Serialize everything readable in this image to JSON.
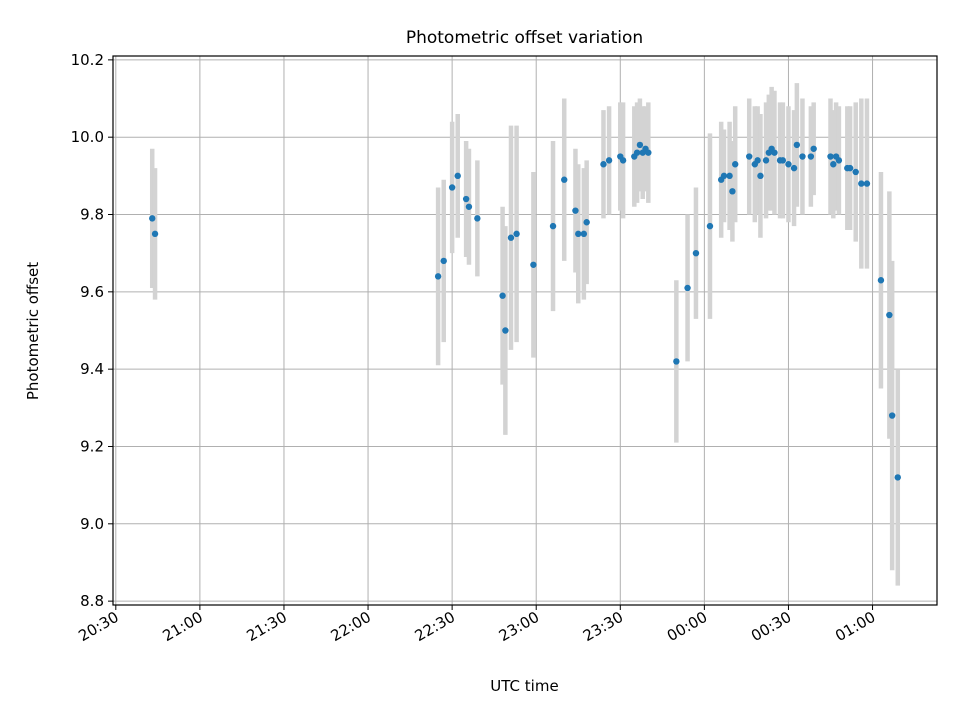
{
  "chart_data": {
    "type": "scatter",
    "title": "Photometric offset variation",
    "xlabel": "UTC time",
    "ylabel": "Photometric offset",
    "x_is_time": true,
    "xlim": [
      "20:29",
      "01:23"
    ],
    "ylim": [
      8.79,
      10.21
    ],
    "x_ticks": [
      "20:30",
      "21:00",
      "21:30",
      "22:00",
      "22:30",
      "23:00",
      "23:30",
      "00:00",
      "00:30",
      "01:00"
    ],
    "y_ticks": [
      "8.8",
      "9.0",
      "9.2",
      "9.4",
      "9.6",
      "9.8",
      "10.0",
      "10.2"
    ],
    "y_tick_values": [
      8.8,
      9.0,
      9.2,
      9.4,
      9.6,
      9.8,
      10.0,
      10.2
    ],
    "grid": true,
    "marker_color": "#1f77b4",
    "errorbar_color": "#d3d3d3",
    "points": [
      [
        "20:43",
        9.79,
        0.18
      ],
      [
        "20:44",
        9.75,
        0.17
      ],
      [
        "22:25",
        9.64,
        0.23
      ],
      [
        "22:27",
        9.68,
        0.21
      ],
      [
        "22:30",
        9.87,
        0.17
      ],
      [
        "22:32",
        9.9,
        0.16
      ],
      [
        "22:35",
        9.84,
        0.15
      ],
      [
        "22:36",
        9.82,
        0.15
      ],
      [
        "22:39",
        9.79,
        0.15
      ],
      [
        "22:48",
        9.59,
        0.23
      ],
      [
        "22:49",
        9.5,
        0.27
      ],
      [
        "22:51",
        9.74,
        0.29
      ],
      [
        "22:53",
        9.75,
        0.28
      ],
      [
        "22:59",
        9.67,
        0.24
      ],
      [
        "23:06",
        9.77,
        0.22
      ],
      [
        "23:10",
        9.89,
        0.21
      ],
      [
        "23:14",
        9.81,
        0.16
      ],
      [
        "23:15",
        9.75,
        0.18
      ],
      [
        "23:17",
        9.75,
        0.17
      ],
      [
        "23:18",
        9.78,
        0.16
      ],
      [
        "23:24",
        9.93,
        0.14
      ],
      [
        "23:26",
        9.94,
        0.14
      ],
      [
        "23:30",
        9.95,
        0.14
      ],
      [
        "23:31",
        9.94,
        0.15
      ],
      [
        "23:35",
        9.95,
        0.13
      ],
      [
        "23:36",
        9.96,
        0.13
      ],
      [
        "23:37",
        9.98,
        0.12
      ],
      [
        "23:38",
        9.96,
        0.12
      ],
      [
        "23:39",
        9.97,
        0.11
      ],
      [
        "23:40",
        9.96,
        0.13
      ],
      [
        "23:50",
        9.42,
        0.21
      ],
      [
        "23:54",
        9.61,
        0.19
      ],
      [
        "23:57",
        9.7,
        0.17
      ],
      [
        "00:02",
        9.77,
        0.24
      ],
      [
        "00:06",
        9.89,
        0.15
      ],
      [
        "00:07",
        9.9,
        0.12
      ],
      [
        "00:09",
        9.9,
        0.14
      ],
      [
        "00:10",
        9.86,
        0.13
      ],
      [
        "00:11",
        9.93,
        0.15
      ],
      [
        "00:16",
        9.95,
        0.15
      ],
      [
        "00:18",
        9.93,
        0.15
      ],
      [
        "00:19",
        9.94,
        0.14
      ],
      [
        "00:20",
        9.9,
        0.16
      ],
      [
        "00:22",
        9.94,
        0.15
      ],
      [
        "00:23",
        9.96,
        0.15
      ],
      [
        "00:24",
        9.97,
        0.16
      ],
      [
        "00:25",
        9.96,
        0.16
      ],
      [
        "00:27",
        9.94,
        0.15
      ],
      [
        "00:28",
        9.94,
        0.15
      ],
      [
        "00:30",
        9.93,
        0.15
      ],
      [
        "00:32",
        9.92,
        0.15
      ],
      [
        "00:33",
        9.98,
        0.16
      ],
      [
        "00:35",
        9.95,
        0.15
      ],
      [
        "00:38",
        9.95,
        0.13
      ],
      [
        "00:39",
        9.97,
        0.12
      ],
      [
        "00:45",
        9.95,
        0.15
      ],
      [
        "00:46",
        9.93,
        0.14
      ],
      [
        "00:47",
        9.95,
        0.14
      ],
      [
        "00:48",
        9.94,
        0.14
      ],
      [
        "00:51",
        9.92,
        0.16
      ],
      [
        "00:52",
        9.92,
        0.16
      ],
      [
        "00:54",
        9.91,
        0.18
      ],
      [
        "00:56",
        9.88,
        0.22
      ],
      [
        "00:58",
        9.88,
        0.22
      ],
      [
        "01:03",
        9.63,
        0.28
      ],
      [
        "01:06",
        9.54,
        0.32
      ],
      [
        "01:07",
        9.28,
        0.4
      ],
      [
        "01:09",
        9.12,
        0.28
      ]
    ]
  }
}
